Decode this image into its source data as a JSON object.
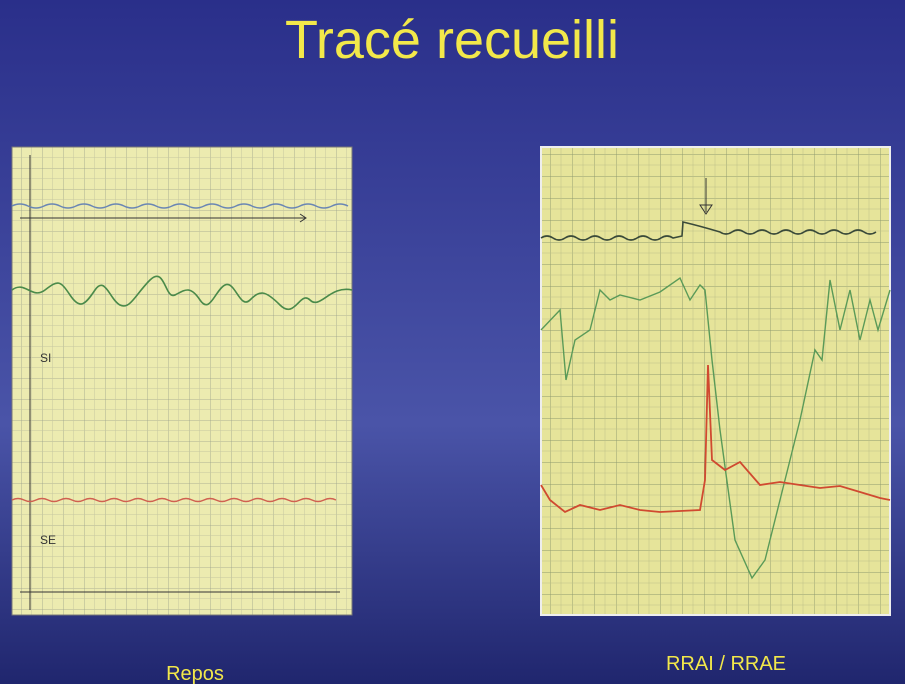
{
  "slide": {
    "title": "Tracé recueilli",
    "left_panel": {
      "caption": "Repos",
      "labels": [
        "SI",
        "SE"
      ]
    },
    "right_panel": {
      "caption": "RRAI / RRAE"
    }
  }
}
